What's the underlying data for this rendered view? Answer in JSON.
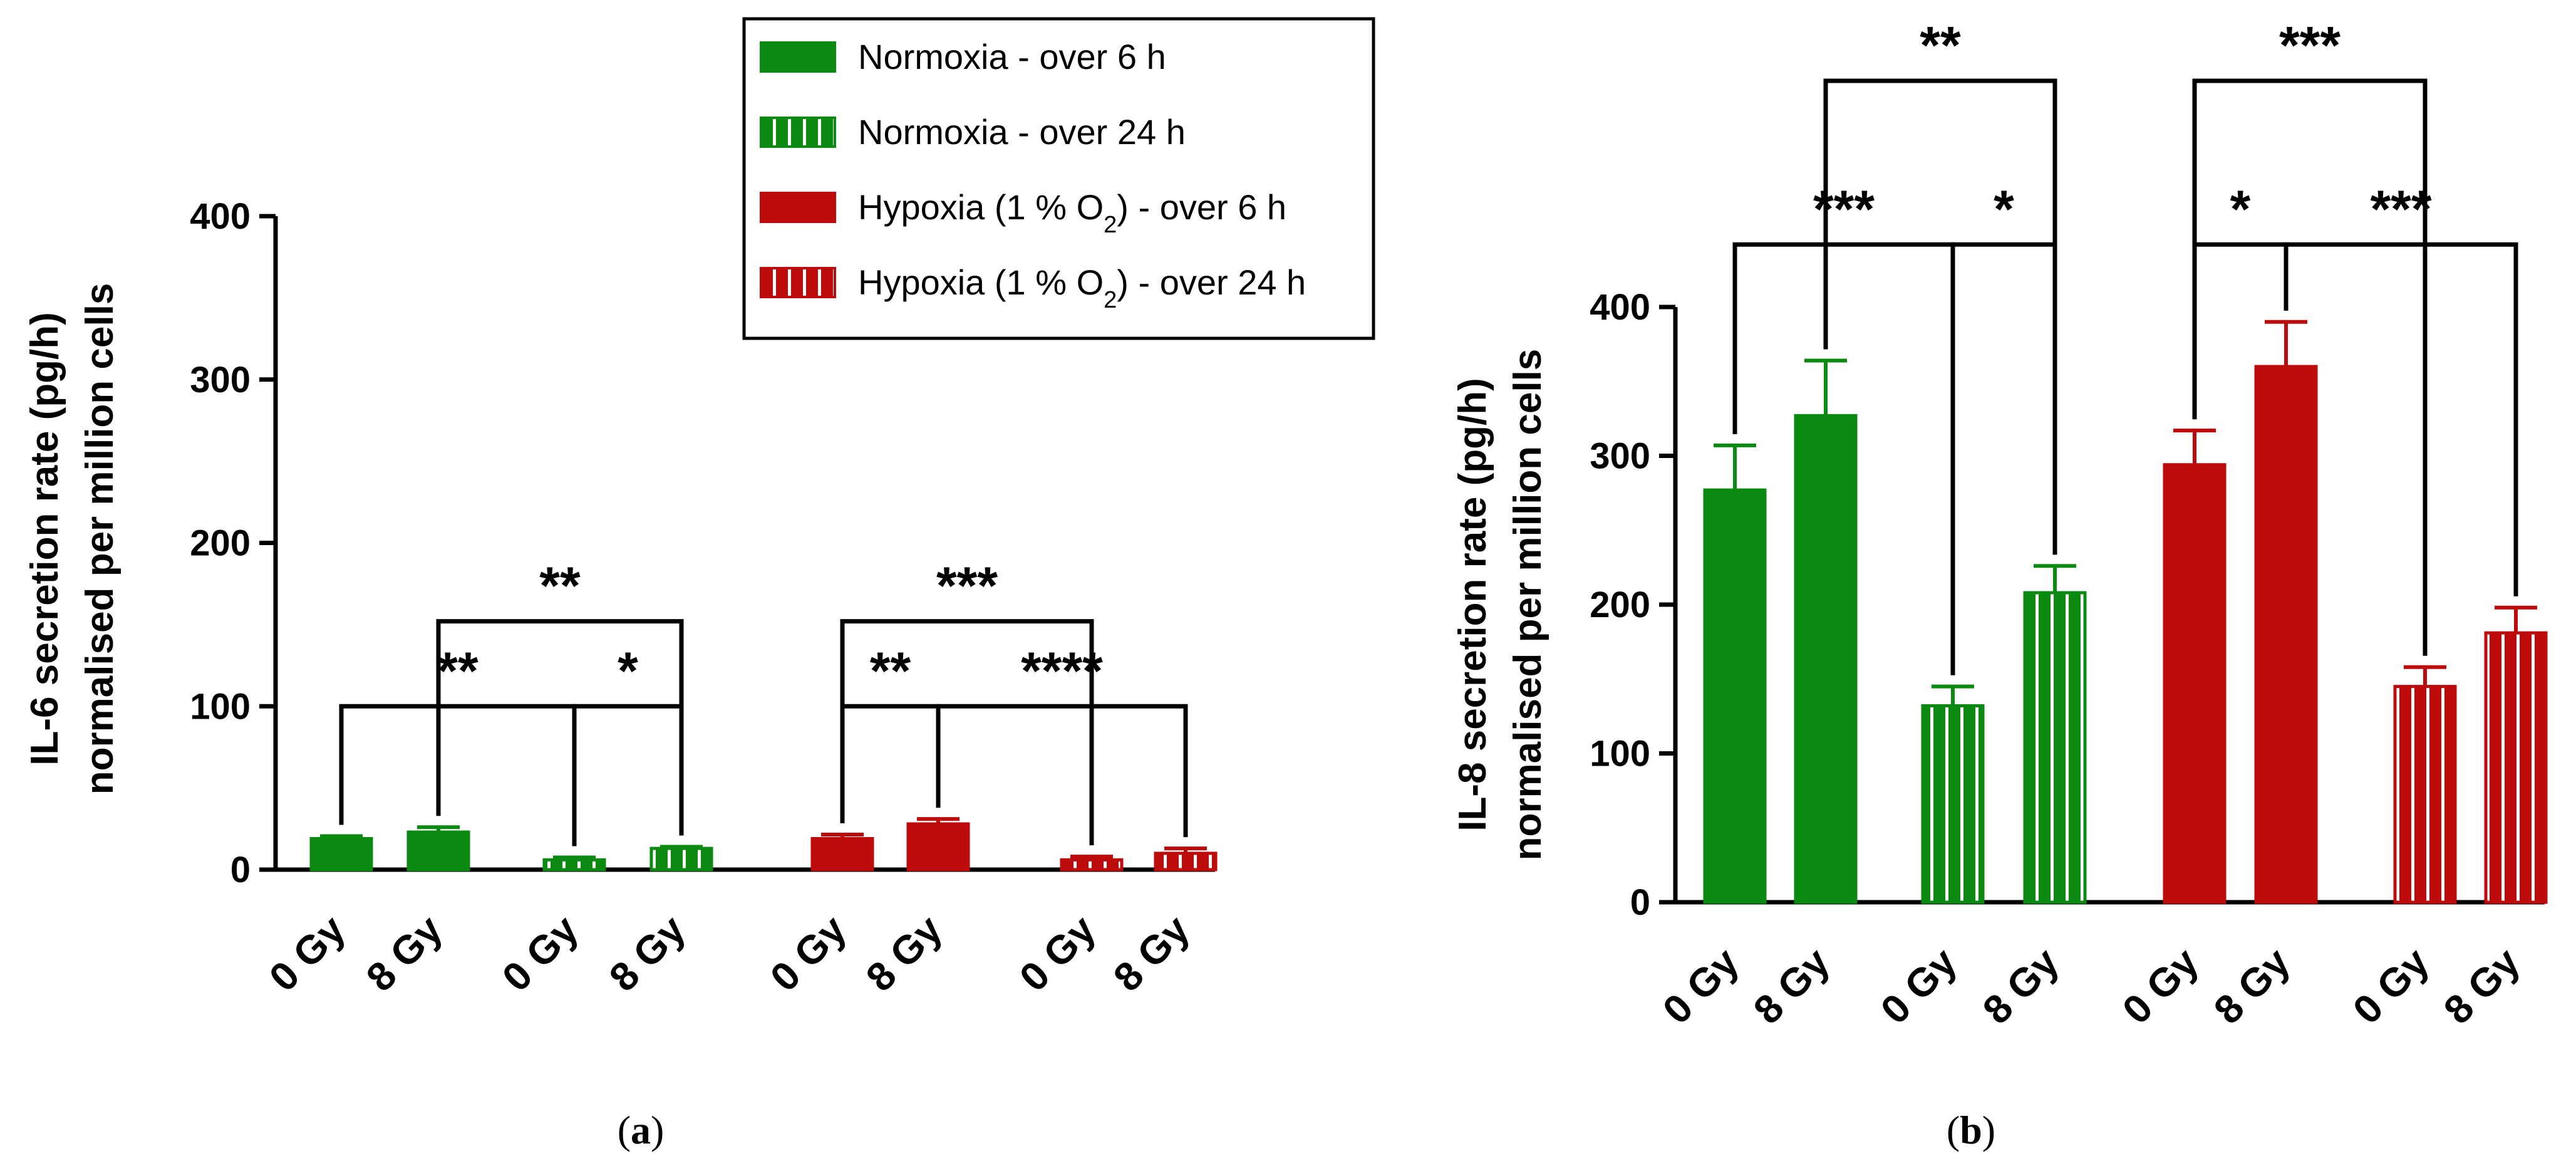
{
  "colors": {
    "normoxia": "#0b8a12",
    "hypoxia": "#bd0a0a",
    "axis": "#000000",
    "background": "#ffffff"
  },
  "legend": {
    "entries": [
      {
        "text": "Normoxia - over 6 h",
        "series": "normoxia",
        "pattern": "solid"
      },
      {
        "text": "Normoxia - over 24 h",
        "series": "normoxia",
        "pattern": "striped"
      },
      {
        "text": "Hypoxia (1 % O",
        "sub": "2",
        "after": ") - over 6 h",
        "series": "hypoxia",
        "pattern": "solid"
      },
      {
        "text": "Hypoxia (1 % O",
        "sub": "2",
        "after": ") - over 24 h",
        "series": "hypoxia",
        "pattern": "striped"
      }
    ]
  },
  "chart_data": [
    {
      "type": "bar",
      "panel_label": "(a)",
      "panel_letter": "a",
      "ylabel_line1": "IL-6 secretion rate (pg/h)",
      "ylabel_line2": "normalised per million cells",
      "ylim": [
        0,
        400
      ],
      "yticks": [
        0,
        100,
        200,
        300,
        400
      ],
      "categories": [
        "0 Gy",
        "8 Gy",
        "0 Gy",
        "8 Gy",
        "0 Gy",
        "8 Gy",
        "0 Gy",
        "8 Gy"
      ],
      "groups": [
        "Normoxia - over 6 h",
        "Normoxia - over 6 h",
        "Normoxia - over 24 h",
        "Normoxia - over 24 h",
        "Hypoxia - over 6 h",
        "Hypoxia - over 6 h",
        "Hypoxia - over 24 h",
        "Hypoxia - over 24 h"
      ],
      "values": [
        19,
        23,
        6,
        13,
        19,
        28,
        6,
        10
      ],
      "errors": [
        1.5,
        3,
        1.5,
        1,
        2.5,
        3,
        2,
        3
      ],
      "significance": [
        {
          "from": 2,
          "to": 3,
          "label": "*",
          "level": 0
        },
        {
          "from": 0,
          "to": 2,
          "label": "**",
          "level": 0
        },
        {
          "from": 1,
          "to": 3,
          "label": "**",
          "level": 1
        },
        {
          "from": 4,
          "to": 5,
          "label": "**",
          "level": 0
        },
        {
          "from": 5,
          "to": 7,
          "label": "****",
          "level": 0
        },
        {
          "from": 4,
          "to": 6,
          "label": "***",
          "level": 1
        }
      ]
    },
    {
      "type": "bar",
      "panel_label": "(b)",
      "panel_letter": "b",
      "ylabel_line1": "IL-8 secretion rate (pg/h)",
      "ylabel_line2": "normalised per million cells",
      "ylim": [
        0,
        400
      ],
      "yticks": [
        0,
        100,
        200,
        300,
        400
      ],
      "categories": [
        "0 Gy",
        "8 Gy",
        "0 Gy",
        "8 Gy",
        "0 Gy",
        "8 Gy",
        "0 Gy",
        "8 Gy"
      ],
      "groups": [
        "Normoxia - over 6 h",
        "Normoxia - over 6 h",
        "Normoxia - over 24 h",
        "Normoxia - over 24 h",
        "Hypoxia - over 6 h",
        "Hypoxia - over 6 h",
        "Hypoxia - over 24 h",
        "Hypoxia - over 24 h"
      ],
      "values": [
        277,
        327,
        132,
        208,
        294,
        360,
        145,
        181
      ],
      "errors": [
        30,
        37,
        13,
        18,
        23,
        30,
        13,
        17
      ],
      "significance": [
        {
          "from": 0,
          "to": 2,
          "label": "***",
          "level": 0
        },
        {
          "from": 2,
          "to": 3,
          "label": "*",
          "level": 0
        },
        {
          "from": 1,
          "to": 3,
          "label": "**",
          "level": 1
        },
        {
          "from": 4,
          "to": 5,
          "label": "*",
          "level": 0
        },
        {
          "from": 5,
          "to": 7,
          "label": "***",
          "level": 0
        },
        {
          "from": 4,
          "to": 6,
          "label": "***",
          "level": 1
        }
      ]
    }
  ]
}
